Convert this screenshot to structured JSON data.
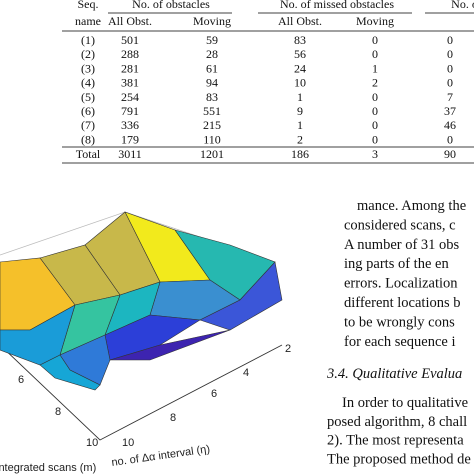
{
  "table": {
    "group_headers": [
      "Seq.",
      "No. of obstacles",
      "No. of missed obstacles",
      "No. of f"
    ],
    "sub_headers": [
      "name",
      "All Obst.",
      "Moving",
      "All Obst.",
      "Moving"
    ],
    "rows": [
      [
        "(1)",
        "501",
        "59",
        "83",
        "0",
        "0"
      ],
      [
        "(2)",
        "288",
        "28",
        "56",
        "0",
        "0"
      ],
      [
        "(3)",
        "281",
        "61",
        "24",
        "1",
        "0"
      ],
      [
        "(4)",
        "381",
        "94",
        "10",
        "2",
        "0"
      ],
      [
        "(5)",
        "254",
        "83",
        "1",
        "0",
        "7"
      ],
      [
        "(6)",
        "791",
        "551",
        "9",
        "0",
        "37"
      ],
      [
        "(7)",
        "336",
        "215",
        "1",
        "0",
        "46"
      ],
      [
        "(8)",
        "179",
        "110",
        "2",
        "0",
        "0"
      ]
    ],
    "total": [
      "Total",
      "3011",
      "1201",
      "186",
      "3",
      "90"
    ]
  },
  "figure": {
    "x_label": "no. of Δα interval (η)",
    "y_label": "integrated scans (m)",
    "x_ticks": [
      "2",
      "4",
      "6",
      "8",
      "10"
    ],
    "y_ticks": [
      "6",
      "8",
      "10"
    ]
  },
  "text": {
    "lines": [
      "mance. Among the",
      "considered scans, c",
      "A number of 31 obs",
      "ing parts of the en",
      "errors. Localization",
      "different locations b",
      "to be wrongly cons",
      "for each sequence i"
    ],
    "section_heading": "3.4.  Qualitative Evalua",
    "lines2": [
      "In order to qualitative",
      "posed algorithm, 8 chall",
      "2). The most representa",
      "The proposed method de"
    ]
  }
}
